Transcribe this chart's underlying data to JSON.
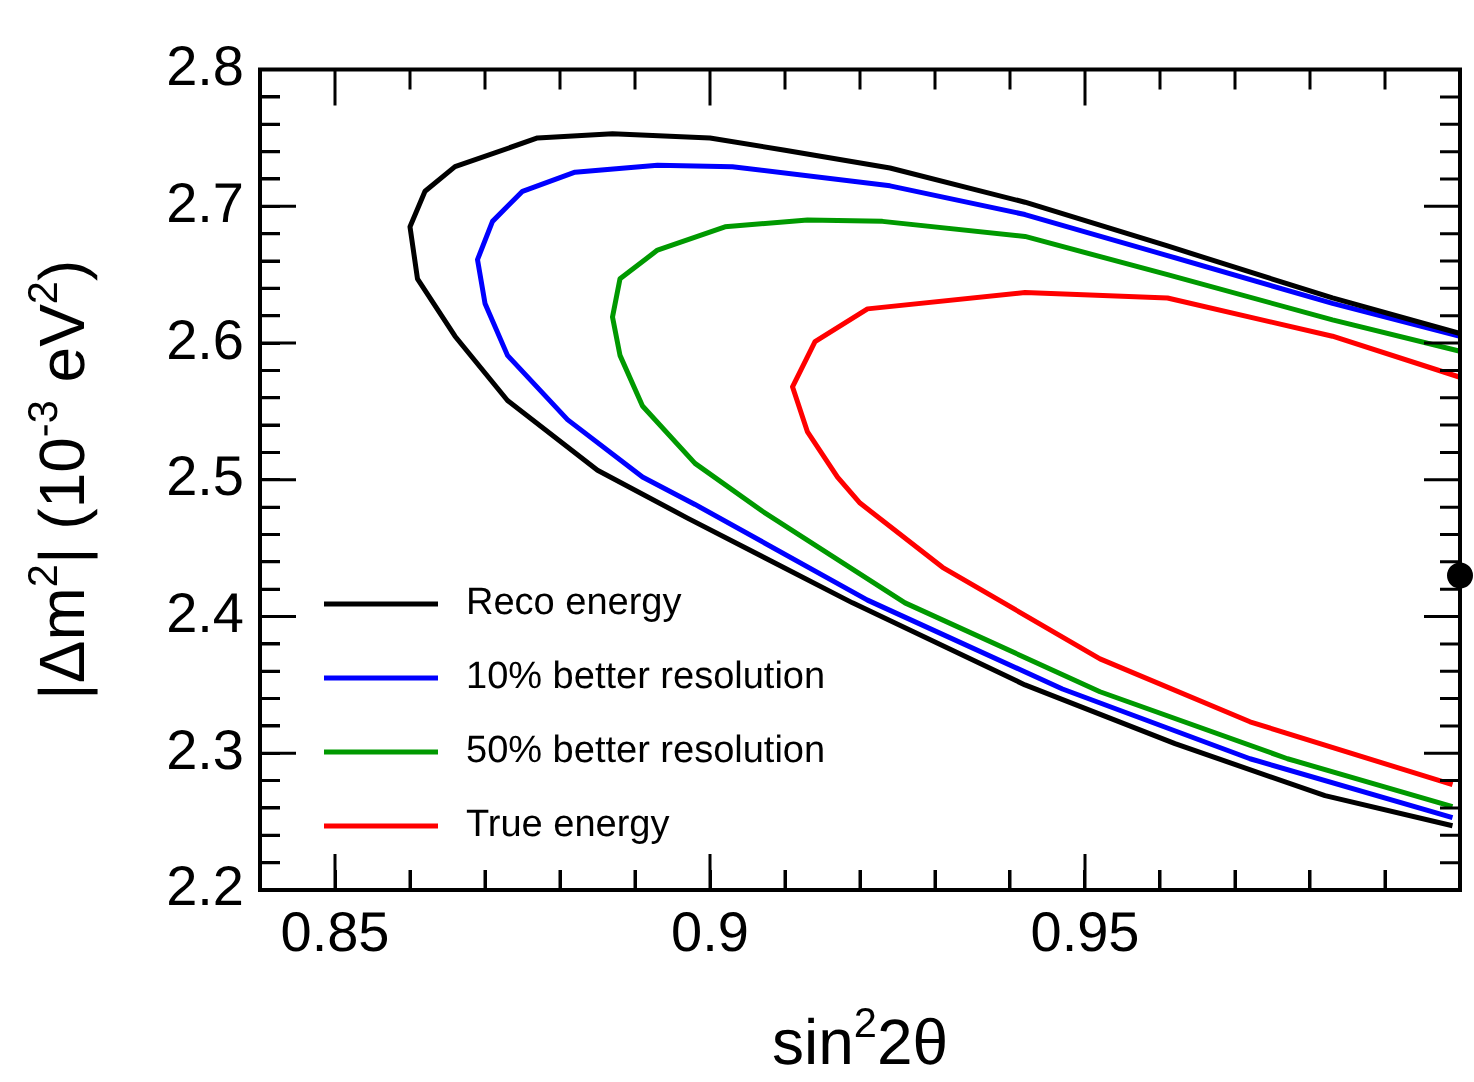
{
  "chart_data": {
    "type": "line",
    "xlabel": "sin$^{2}$2θ",
    "ylabel": "|Δm$^{2}$| (10$^{-3}$ eV$^{2}$)",
    "xlim": [
      0.84,
      1.0
    ],
    "ylim": [
      2.2,
      2.8
    ],
    "xticks": [
      {
        "value": 0.84,
        "label": null
      },
      0.85,
      {
        "value": 0.86,
        "label": null
      },
      {
        "value": 0.87,
        "label": null
      },
      {
        "value": 0.88,
        "label": null
      },
      {
        "value": 0.89,
        "label": null
      },
      0.9,
      {
        "value": 0.91,
        "label": null
      },
      {
        "value": 0.92,
        "label": null
      },
      {
        "value": 0.93,
        "label": null
      },
      {
        "value": 0.94,
        "label": null
      },
      0.95,
      {
        "value": 0.96,
        "label": null
      },
      {
        "value": 0.97,
        "label": null
      },
      {
        "value": 0.98,
        "label": null
      },
      {
        "value": 0.99,
        "label": null
      }
    ],
    "yticks": [
      2.2,
      {
        "value": 2.22,
        "label": null
      },
      {
        "value": 2.24,
        "label": null
      },
      {
        "value": 2.26,
        "label": null
      },
      {
        "value": 2.28,
        "label": null
      },
      2.3,
      {
        "value": 2.32,
        "label": null
      },
      {
        "value": 2.34,
        "label": null
      },
      {
        "value": 2.36,
        "label": null
      },
      {
        "value": 2.38,
        "label": null
      },
      2.4,
      {
        "value": 2.42,
        "label": null
      },
      {
        "value": 2.44,
        "label": null
      },
      {
        "value": 2.46,
        "label": null
      },
      {
        "value": 2.48,
        "label": null
      },
      2.5,
      {
        "value": 2.52,
        "label": null
      },
      {
        "value": 2.54,
        "label": null
      },
      {
        "value": 2.56,
        "label": null
      },
      {
        "value": 2.58,
        "label": null
      },
      2.6,
      {
        "value": 2.62,
        "label": null
      },
      {
        "value": 2.64,
        "label": null
      },
      {
        "value": 2.66,
        "label": null
      },
      {
        "value": 2.68,
        "label": null
      },
      2.7,
      {
        "value": 2.72,
        "label": null
      },
      {
        "value": 2.74,
        "label": null
      },
      {
        "value": 2.76,
        "label": null
      },
      {
        "value": 2.78,
        "label": null
      },
      2.8
    ],
    "legend": "bottom left",
    "marker": "none",
    "line_style": "solid",
    "series": [
      {
        "name": "Reco energy",
        "color": "#000000",
        "x": [
          1.0,
          0.983,
          0.961,
          0.942,
          0.924,
          0.91,
          0.9,
          0.887,
          0.877,
          0.866,
          0.862,
          0.86,
          0.861,
          0.866,
          0.873,
          0.885,
          0.897,
          0.919,
          0.942,
          0.962,
          0.982,
          0.999
        ],
        "values": [
          2.607,
          2.633,
          2.671,
          2.703,
          2.728,
          2.741,
          2.75,
          2.753,
          2.75,
          2.729,
          2.711,
          2.685,
          2.647,
          2.605,
          2.558,
          2.507,
          2.472,
          2.41,
          2.35,
          2.307,
          2.269,
          2.247
        ]
      },
      {
        "name": "10% better resolution",
        "color": "#0000ff",
        "x": [
          1.0,
          0.983,
          0.961,
          0.942,
          0.924,
          0.903,
          0.893,
          0.882,
          0.875,
          0.871,
          0.869,
          0.87,
          0.873,
          0.881,
          0.891,
          0.898,
          0.921,
          0.947,
          0.972,
          0.999
        ],
        "values": [
          2.605,
          2.629,
          2.664,
          2.694,
          2.715,
          2.729,
          2.73,
          2.725,
          2.711,
          2.689,
          2.661,
          2.629,
          2.591,
          2.544,
          2.502,
          2.482,
          2.412,
          2.347,
          2.296,
          2.253
        ]
      },
      {
        "name": "50% better resolution",
        "color": "#009900",
        "x": [
          1.0,
          0.983,
          0.961,
          0.942,
          0.923,
          0.913,
          0.902,
          0.893,
          0.888,
          0.887,
          0.888,
          0.891,
          0.898,
          0.907,
          0.926,
          0.952,
          0.977,
          0.999
        ],
        "values": [
          2.594,
          2.617,
          2.65,
          2.678,
          2.689,
          2.69,
          2.685,
          2.668,
          2.647,
          2.619,
          2.591,
          2.554,
          2.512,
          2.477,
          2.41,
          2.345,
          2.296,
          2.261
        ]
      },
      {
        "name": "True energy",
        "color": "#ff0000",
        "x": [
          1.0,
          0.983,
          0.961,
          0.942,
          0.921,
          0.914,
          0.911,
          0.913,
          0.917,
          0.92,
          0.931,
          0.952,
          0.972,
          0.999
        ],
        "values": [
          2.575,
          2.605,
          2.633,
          2.637,
          2.625,
          2.601,
          2.568,
          2.535,
          2.502,
          2.483,
          2.436,
          2.369,
          2.323,
          2.277
        ]
      },
      {
        "type": "scatter",
        "marker": "circle",
        "color": "#000000",
        "x": [
          1.0
        ],
        "values": [
          2.43
        ]
      }
    ]
  }
}
